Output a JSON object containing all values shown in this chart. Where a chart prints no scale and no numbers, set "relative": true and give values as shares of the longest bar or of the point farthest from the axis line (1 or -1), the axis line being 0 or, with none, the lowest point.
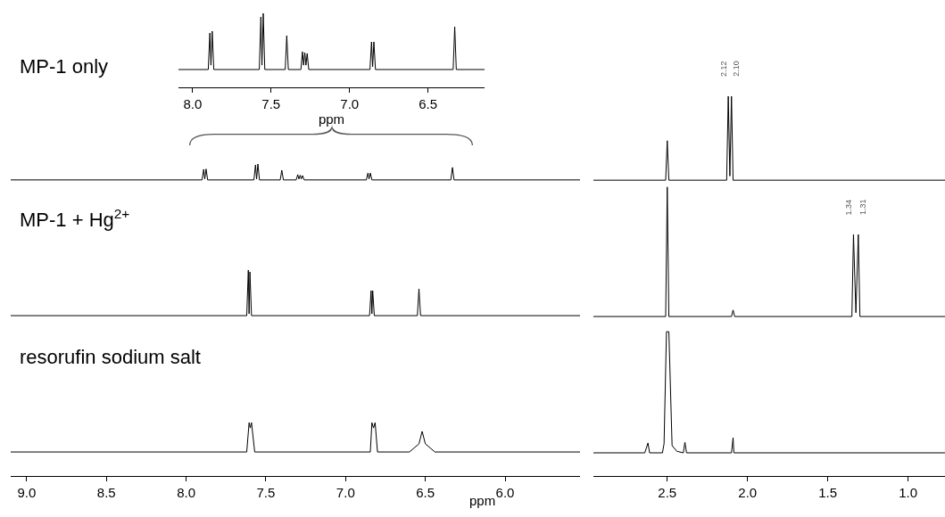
{
  "chart_data": [
    {
      "type": "line",
      "relative": true,
      "xlabel": "ppm",
      "xlim": [
        8.09,
        6.14
      ],
      "xticks": [
        {
          "value": 8.0,
          "label": "8.0"
        },
        7.5,
        {
          "value": 7.0,
          "label": "7.0"
        },
        6.5
      ],
      "tick_labels": "x",
      "series": [
        {
          "color": "#000000",
          "x": [
            8.09,
            7.9,
            7.89,
            7.883,
            7.875,
            7.865,
            7.575,
            7.565,
            7.558,
            7.55,
            7.54,
            7.41,
            7.4,
            7.39,
            7.31,
            7.3,
            7.293,
            7.285,
            7.278,
            7.27,
            7.26,
            6.87,
            6.86,
            6.853,
            6.845,
            6.835,
            6.34,
            6.33,
            6.32,
            6.14
          ],
          "values": [
            0.241,
            0.241,
            0.735,
            0.3,
            0.759,
            0.241,
            0.241,
            0.952,
            0.3,
            1.0,
            0.241,
            0.241,
            0.699,
            0.241,
            0.241,
            0.482,
            0.3,
            0.47,
            0.3,
            0.458,
            0.241,
            0.241,
            0.614,
            0.28,
            0.614,
            0.241,
            0.241,
            0.819,
            0.241,
            0.241
          ]
        }
      ]
    },
    {
      "type": "line",
      "relative": true,
      "xlabel": "ppm",
      "annotations": [
        "MP-1 only",
        "MP-1 + Hg$^{2+}$",
        "resorufin sodium salt"
      ],
      "xlim": [
        9.1,
        5.53
      ],
      "xticks": [
        {
          "value": 9.0,
          "label": "9.0"
        },
        8.5,
        {
          "value": 8.0,
          "label": "8.0"
        },
        7.5,
        {
          "value": 7.0,
          "label": "7.0"
        },
        6.5,
        {
          "value": 6.0,
          "label": "6.0"
        }
      ],
      "tick_labels": "x",
      "series": [
        {
          "color": "#000000",
          "x": [
            9.1,
            7.9,
            7.89,
            7.883,
            7.875,
            7.865,
            7.575,
            7.565,
            7.558,
            7.55,
            7.54,
            7.41,
            7.4,
            7.39,
            7.31,
            7.3,
            7.293,
            7.285,
            7.278,
            7.27,
            7.26,
            6.87,
            6.86,
            6.853,
            6.845,
            6.835,
            6.34,
            6.33,
            6.32,
            5.53
          ],
          "values": [
            0.949,
            0.949,
            0.983,
            0.952,
            0.984,
            0.949,
            0.949,
            0.997,
            0.952,
            1.0,
            0.949,
            0.949,
            0.98,
            0.949,
            0.949,
            0.966,
            0.952,
            0.964,
            0.952,
            0.963,
            0.949,
            0.949,
            0.971,
            0.952,
            0.971,
            0.949,
            0.949,
            0.989,
            0.949,
            0.949
          ]
        },
        {
          "color": "#000000",
          "x": [
            9.1,
            7.62,
            7.61,
            7.605,
            7.6,
            7.59,
            6.85,
            6.84,
            6.835,
            6.83,
            6.82,
            6.55,
            6.54,
            6.53,
            5.53
          ],
          "values": [
            0.514,
            0.514,
            0.66,
            0.52,
            0.654,
            0.514,
            0.514,
            0.594,
            0.52,
            0.594,
            0.514,
            0.514,
            0.6,
            0.514,
            0.514
          ]
        },
        {
          "color": "#000000",
          "x": [
            9.1,
            7.62,
            7.605,
            7.598,
            7.59,
            7.57,
            6.845,
            6.835,
            6.825,
            6.815,
            6.8,
            6.6,
            6.54,
            6.52,
            6.5,
            6.44,
            5.53
          ],
          "values": [
            0.077,
            0.077,
            0.171,
            0.154,
            0.171,
            0.077,
            0.077,
            0.171,
            0.154,
            0.171,
            0.077,
            0.077,
            0.103,
            0.143,
            0.103,
            0.077,
            0.077
          ]
        }
      ]
    },
    {
      "type": "line",
      "relative": true,
      "xlim": [
        2.96,
        0.77
      ],
      "xticks": [
        2.5,
        {
          "value": 2.0,
          "label": "2.0"
        },
        1.5,
        {
          "value": 1.0,
          "label": "1.0"
        }
      ],
      "tick_labels": "x",
      "annotations": [
        {
          "text": "2.12",
          "x": 2.12,
          "y": 1.0
        },
        {
          "text": "2.10",
          "x": 2.1,
          "y": 1.0
        },
        {
          "text": "1.34",
          "x": 1.34,
          "y": 0.636
        },
        {
          "text": "1.31",
          "x": 1.31,
          "y": 0.636
        }
      ],
      "series": [
        {
          "color": "#000000",
          "x": [
            2.96,
            2.51,
            2.5,
            2.49,
            2.13,
            2.12,
            2.11,
            2.1,
            2.09,
            0.77
          ],
          "values": [
            0.779,
            0.779,
            0.883,
            0.779,
            0.779,
            1.0,
            0.79,
            1.0,
            0.779,
            0.779
          ]
        },
        {
          "color": "#000000",
          "x": [
            2.96,
            2.51,
            2.5,
            2.49,
            2.1,
            2.09,
            2.08,
            1.35,
            1.34,
            1.325,
            1.31,
            1.3,
            0.77
          ],
          "values": [
            0.42,
            0.42,
            0.761,
            0.42,
            0.42,
            0.437,
            0.42,
            0.42,
            0.636,
            0.43,
            0.636,
            0.42,
            0.42
          ]
        },
        {
          "color": "#000000",
          "x": [
            2.96,
            2.64,
            2.62,
            2.61,
            2.53,
            2.52,
            2.505,
            2.49,
            2.47,
            2.44,
            2.4,
            2.39,
            2.38,
            2.1,
            2.09,
            2.085,
            0.77
          ],
          "values": [
            0.061,
            0.061,
            0.087,
            0.061,
            0.061,
            0.085,
            0.38,
            0.38,
            0.08,
            0.065,
            0.061,
            0.089,
            0.061,
            0.061,
            0.101,
            0.061,
            0.061
          ]
        }
      ]
    }
  ]
}
